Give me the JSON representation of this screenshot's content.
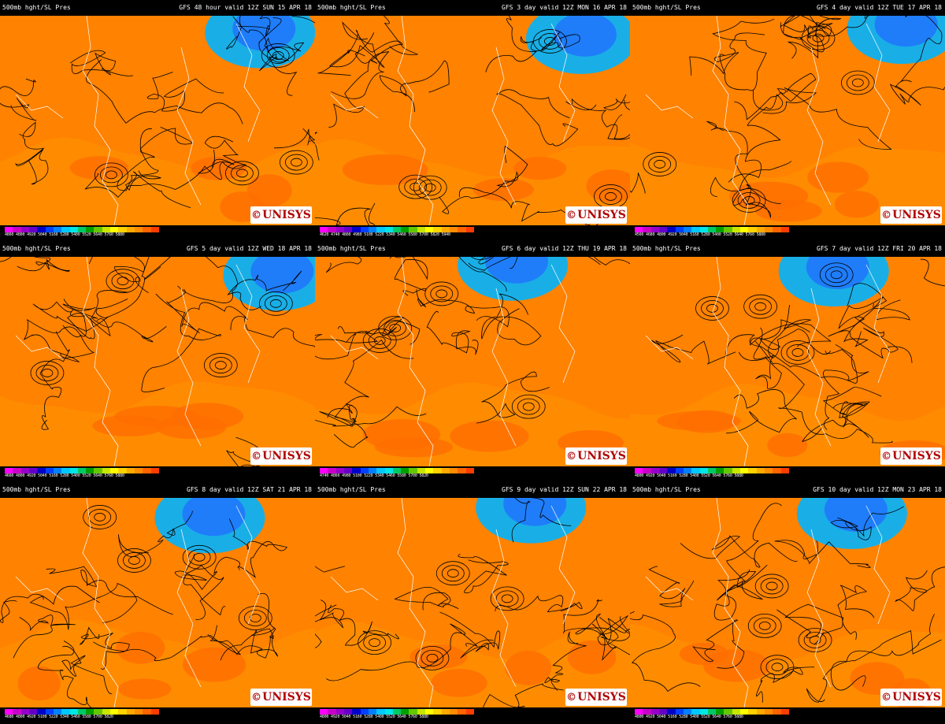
{
  "colors": {
    "legend_scale": [
      "#ff00ff",
      "#c800c8",
      "#9600c8",
      "#6400c8",
      "#0000c8",
      "#0040ff",
      "#0080ff",
      "#00c8ff",
      "#00e6e6",
      "#00c864",
      "#00a000",
      "#64c800",
      "#c8e600",
      "#ffff00",
      "#ffd200",
      "#ffaa00",
      "#ff8c00",
      "#ff6400",
      "#ff3c00"
    ],
    "logo_text": "#b00000"
  },
  "logo": {
    "symbol": "©",
    "text": "UNISYS"
  },
  "panels": [
    {
      "left": "500mb hght/SL Pres",
      "right": "GFS 48 hour valid 12Z SUN 15 APR 18",
      "ticks": "4860 4800 4920 5040 5160 5280 5400 5520 5640 5760 5880",
      "variant": "a"
    },
    {
      "left": "500mb hght/SL Pres",
      "right": "GFS 3 day valid 12Z MON 16 APR 18",
      "ticks": "4620 4740 4860 4980 5100 5220 5340 5460 5580 5700 5820 5940",
      "variant": "b"
    },
    {
      "left": "500mb hght/SL Pres",
      "right": "GFS 4 day valid 12Z TUE 17 APR 18",
      "ticks": "4560 4680 4800 4920 5040 5160 5280 5400 5520 5640 5760 5880",
      "variant": "c"
    },
    {
      "left": "500mb hght/SL Pres",
      "right": "GFS 5 day valid 12Z WED 18 APR 18",
      "ticks": "4660 4800 4920 5040 5160 5280 5400 5520 5640 5760 5880",
      "variant": "d"
    },
    {
      "left": "500mb hght/SL Pres",
      "right": "GFS 6 day valid 12Z THU 19 APR 18",
      "ticks": "4740 4860 4980 5100 5220 5340 5460 5580 5700 5820",
      "variant": "e"
    },
    {
      "left": "500mb hght/SL Pres",
      "right": "GFS 7 day valid 12Z FRI 20 APR 18",
      "ticks": "4800 4920 5040 5160 5280 5400 5520 5640 5760 5880",
      "variant": "f"
    },
    {
      "left": "500mb hght/SL Pres",
      "right": "GFS 8 day valid 12Z SAT 21 APR 18",
      "ticks": "4680 4800 4920 5100 5220 5340 5460 5580 5700 5820",
      "variant": "g"
    },
    {
      "left": "500mb hght/SL Pres",
      "right": "GFS 9 day valid 12Z SUN 22 APR 18",
      "ticks": "4800 4920 5040 5160 5280 5400 5520 5640 5760 5880",
      "variant": "h"
    },
    {
      "left": "500mb hght/SL Pres",
      "right": "GFS 10 day valid 12Z MON 23 APR 18",
      "ticks": "4800 4920 5040 5160 5280 5400 5520 5640 5760 5880",
      "variant": "i"
    }
  ]
}
